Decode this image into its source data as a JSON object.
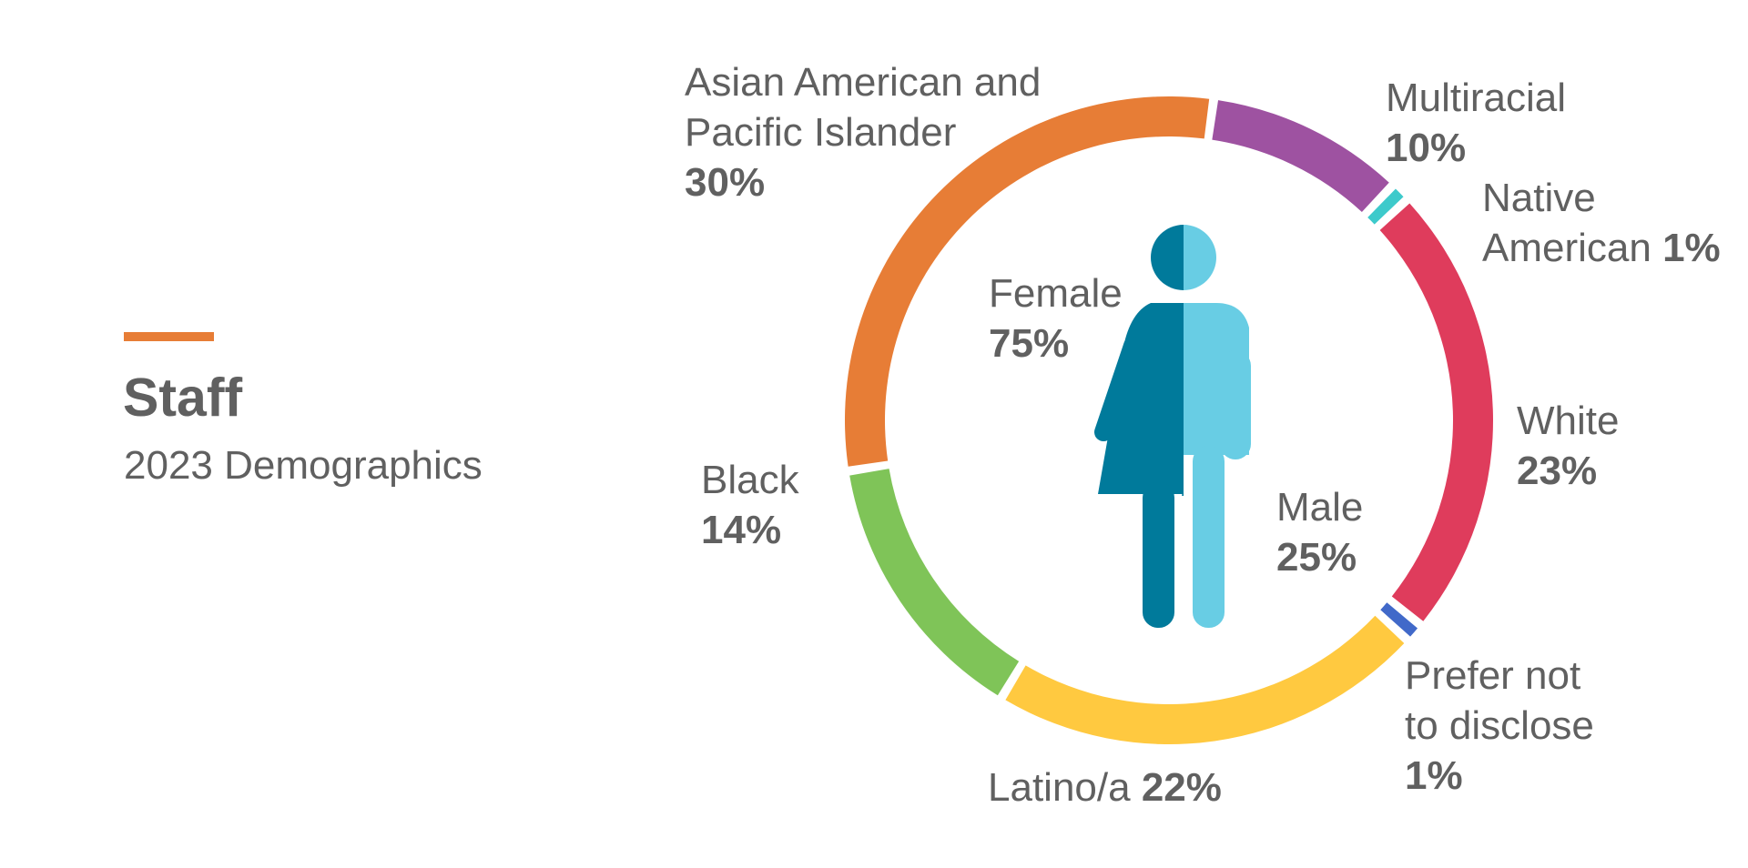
{
  "header": {
    "title": "Staff",
    "subtitle": "2023 Demographics"
  },
  "colors": {
    "accent": "#E77D36",
    "text": "#606060",
    "female": "#007A9B",
    "male": "#68CDE4"
  },
  "chart_data": {
    "type": "pie",
    "style": "donut",
    "unit": "%",
    "legend": "none",
    "series": [
      {
        "categories": [
          "Asian American and Pacific Islander",
          "Multiracial",
          "Native American",
          "White",
          "Prefer not to disclose",
          "Latino/a",
          "Black"
        ],
        "values": [
          30,
          10,
          1,
          23,
          1,
          22,
          14
        ],
        "colors": [
          "#E77D36",
          "#9E52A1",
          "#3DCACB",
          "#DF3C5C",
          "#4169C9",
          "#FFC940",
          "#7FC458"
        ]
      },
      {
        "categories": [
          "Female",
          "Male"
        ],
        "values": [
          75,
          25
        ],
        "colors": [
          "#007A9B",
          "#68CDE4"
        ]
      }
    ],
    "labels": {
      "aapi_line1": "Asian American and",
      "aapi_line2": "Pacific Islander",
      "aapi_value": "30%",
      "multiracial_name": "Multiracial",
      "multiracial_value": "10%",
      "native_line1": "Native",
      "native_line2": "American",
      "native_value": "1%",
      "white_name": "White",
      "white_value": "23%",
      "prefer_line1": "Prefer not",
      "prefer_line2": "to disclose",
      "prefer_value": "1%",
      "latino_name": "Latino/a",
      "latino_value": "22%",
      "black_name": "Black",
      "black_value": "14%",
      "female_name": "Female",
      "female_value": "75%",
      "male_name": "Male",
      "male_value": "25%"
    }
  }
}
